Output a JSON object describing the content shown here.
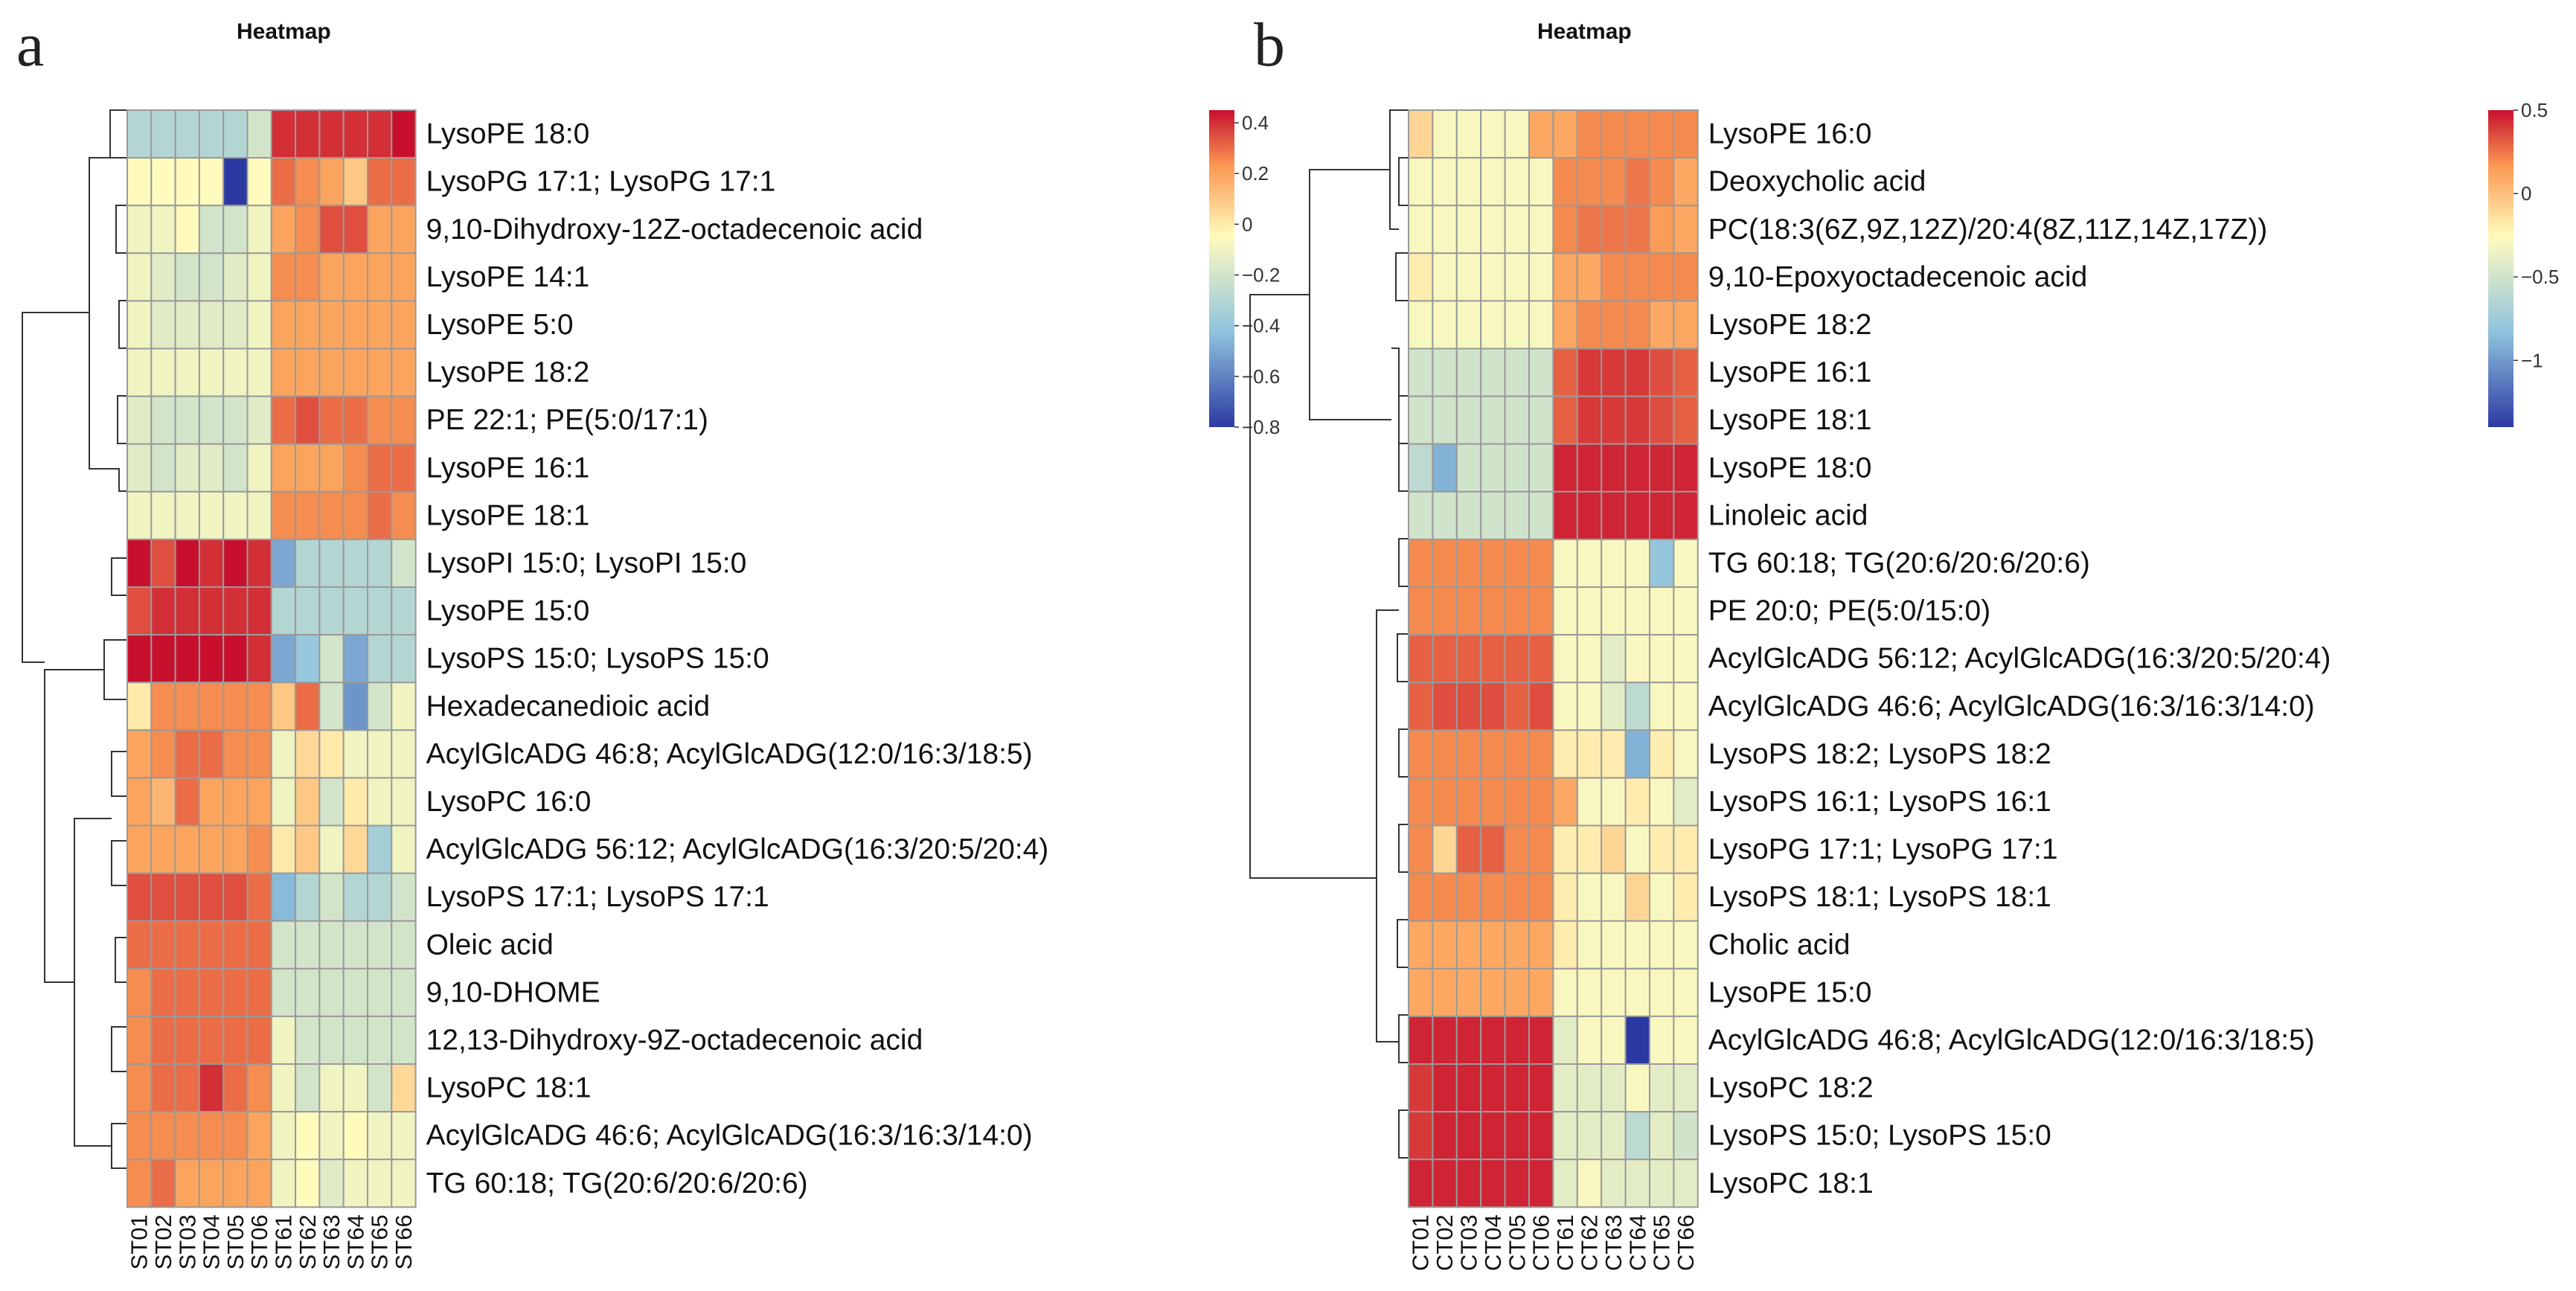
{
  "colors": {
    "low": "#2c39a3",
    "mid_low": "#8fc3de",
    "mid": "#fffbbd",
    "mid_high": "#fb9b54",
    "high": "#c8102e",
    "grid": "#9a9a9a"
  },
  "chart_data": [
    {
      "type": "heatmap",
      "panel": "a",
      "title": "Heatmap",
      "columns": [
        "ST01",
        "ST02",
        "ST03",
        "ST04",
        "ST05",
        "ST06",
        "ST61",
        "ST62",
        "ST63",
        "ST64",
        "ST65",
        "ST66"
      ],
      "rows": [
        "LysoPE 18:0",
        "LysoPG 17:1; LysoPG 17:1",
        "9,10-Dihydroxy-12Z-octadecenoic acid",
        "LysoPE 14:1",
        "LysoPE 5:0",
        "LysoPE 18:2",
        "PE 22:1; PE(5:0/17:1)",
        "LysoPE 16:1",
        "LysoPE 18:1",
        "LysoPI 15:0; LysoPI 15:0",
        "LysoPE 15:0",
        "LysoPS 15:0; LysoPS 15:0",
        "Hexadecanedioic acid",
        "AcylGlcADG 46:8; AcylGlcADG(12:0/16:3/18:5)",
        "LysoPC 16:0",
        "AcylGlcADG 56:12; AcylGlcADG(16:3/20:5/20:4)",
        "LysoPS 17:1; LysoPS 17:1",
        "Oleic acid",
        "9,10-DHOME",
        "12,13-Dihydroxy-9Z-octadecenoic acid",
        "LysoPC 18:1",
        "AcylGlcADG 46:6; AcylGlcADG(16:3/16:3/14:0)",
        "TG 60:18; TG(20:6/20:6/20:6)"
      ],
      "values": [
        [
          -0.3,
          -0.3,
          -0.3,
          -0.3,
          -0.3,
          -0.2,
          0.4,
          0.4,
          0.4,
          0.4,
          0.4,
          0.45
        ],
        [
          -0.05,
          -0.05,
          -0.05,
          -0.05,
          -0.8,
          -0.05,
          0.3,
          0.25,
          0.2,
          0.1,
          0.3,
          0.3
        ],
        [
          -0.1,
          -0.1,
          -0.05,
          -0.2,
          -0.2,
          -0.1,
          0.2,
          0.25,
          0.35,
          0.35,
          0.2,
          0.2
        ],
        [
          -0.1,
          -0.15,
          -0.2,
          -0.2,
          -0.15,
          -0.1,
          0.25,
          0.25,
          0.2,
          0.2,
          0.2,
          0.2
        ],
        [
          -0.1,
          -0.15,
          -0.15,
          -0.15,
          -0.15,
          -0.1,
          0.2,
          0.2,
          0.2,
          0.2,
          0.2,
          0.2
        ],
        [
          -0.1,
          -0.1,
          -0.1,
          -0.1,
          -0.1,
          -0.1,
          0.2,
          0.2,
          0.2,
          0.2,
          0.2,
          0.2
        ],
        [
          -0.15,
          -0.2,
          -0.2,
          -0.2,
          -0.2,
          -0.15,
          0.3,
          0.35,
          0.3,
          0.3,
          0.25,
          0.25
        ],
        [
          -0.15,
          -0.2,
          -0.15,
          -0.15,
          -0.2,
          -0.1,
          0.2,
          0.2,
          0.2,
          0.25,
          0.3,
          0.3
        ],
        [
          -0.1,
          -0.1,
          -0.1,
          -0.1,
          -0.1,
          -0.1,
          0.25,
          0.25,
          0.25,
          0.25,
          0.3,
          0.25
        ],
        [
          0.45,
          0.35,
          0.45,
          0.4,
          0.45,
          0.4,
          -0.5,
          -0.3,
          -0.3,
          -0.3,
          -0.3,
          -0.2
        ],
        [
          0.35,
          0.4,
          0.4,
          0.4,
          0.4,
          0.4,
          -0.3,
          -0.3,
          -0.3,
          -0.3,
          -0.3,
          -0.3
        ],
        [
          0.45,
          0.45,
          0.45,
          0.45,
          0.45,
          0.4,
          -0.5,
          -0.4,
          -0.2,
          -0.5,
          -0.3,
          -0.3
        ],
        [
          0.0,
          0.25,
          0.25,
          0.25,
          0.25,
          0.25,
          0.1,
          0.3,
          -0.2,
          -0.55,
          -0.2,
          -0.1
        ],
        [
          0.2,
          0.25,
          0.3,
          0.3,
          0.25,
          0.25,
          -0.1,
          0.05,
          0.0,
          -0.1,
          -0.1,
          -0.1
        ],
        [
          0.2,
          0.15,
          0.3,
          0.2,
          0.2,
          0.2,
          -0.1,
          0.1,
          -0.2,
          0.0,
          -0.1,
          -0.1
        ],
        [
          0.2,
          0.2,
          0.2,
          0.2,
          0.2,
          0.25,
          0.0,
          0.1,
          -0.1,
          0.05,
          -0.35,
          -0.1
        ],
        [
          0.35,
          0.35,
          0.35,
          0.35,
          0.35,
          0.3,
          -0.45,
          -0.3,
          -0.2,
          -0.3,
          -0.3,
          -0.2
        ],
        [
          0.3,
          0.3,
          0.3,
          0.3,
          0.3,
          0.3,
          -0.2,
          -0.2,
          -0.2,
          -0.2,
          -0.2,
          -0.2
        ],
        [
          0.25,
          0.3,
          0.3,
          0.3,
          0.3,
          0.3,
          -0.2,
          -0.2,
          -0.2,
          -0.2,
          -0.2,
          -0.2
        ],
        [
          0.25,
          0.3,
          0.3,
          0.3,
          0.3,
          0.3,
          -0.1,
          -0.2,
          -0.2,
          -0.2,
          -0.2,
          -0.2
        ],
        [
          0.25,
          0.3,
          0.3,
          0.4,
          0.3,
          0.25,
          -0.1,
          -0.2,
          -0.1,
          -0.1,
          -0.2,
          0.05
        ],
        [
          0.25,
          0.25,
          0.25,
          0.25,
          0.25,
          0.2,
          -0.1,
          -0.05,
          -0.1,
          -0.05,
          -0.1,
          -0.1
        ],
        [
          0.25,
          0.3,
          0.2,
          0.2,
          0.2,
          0.2,
          -0.1,
          -0.05,
          -0.15,
          -0.1,
          -0.1,
          -0.1
        ]
      ],
      "color_scale": {
        "min": -0.8,
        "max": 0.45,
        "ticks": [
          0.4,
          0.2,
          0,
          -0.2,
          -0.4,
          -0.6,
          -0.8
        ]
      }
    },
    {
      "type": "heatmap",
      "panel": "b",
      "title": "Heatmap",
      "columns": [
        "CT01",
        "CT02",
        "CT03",
        "CT04",
        "CT05",
        "CT06",
        "CT61",
        "CT62",
        "CT63",
        "CT64",
        "CT65",
        "CT66"
      ],
      "rows": [
        "LysoPE 16:0",
        "Deoxycholic acid",
        "PC(18:3(6Z,9Z,12Z)/20:4(8Z,11Z,14Z,17Z))",
        "9,10-Epoxyoctadecenoic acid",
        "LysoPE 18:2",
        "LysoPE 16:1",
        "LysoPE 18:1",
        "LysoPE 18:0",
        "Linoleic acid",
        "TG 60:18; TG(20:6/20:6/20:6)",
        "PE 20:0; PE(5:0/15:0)",
        "AcylGlcADG 56:12; AcylGlcADG(16:3/20:5/20:4)",
        "AcylGlcADG 46:6; AcylGlcADG(16:3/16:3/14:0)",
        "LysoPS 18:2; LysoPS 18:2",
        "LysoPS 16:1; LysoPS 16:1",
        "LysoPG 17:1; LysoPG 17:1",
        "LysoPS 18:1; LysoPS 18:1",
        "Cholic acid",
        "LysoPE 15:0",
        "AcylGlcADG 46:8; AcylGlcADG(12:0/16:3/18:5)",
        "LysoPC 18:2",
        "LysoPS 15:0; LysoPS 15:0",
        "LysoPC 18:1"
      ],
      "values": [
        [
          -0.1,
          -0.3,
          -0.3,
          -0.3,
          -0.3,
          0.1,
          0.1,
          0.2,
          0.2,
          0.2,
          0.2,
          0.2
        ],
        [
          -0.3,
          -0.3,
          -0.3,
          -0.3,
          -0.3,
          -0.3,
          0.2,
          0.2,
          0.2,
          0.25,
          0.2,
          0.1
        ],
        [
          -0.3,
          -0.3,
          -0.3,
          -0.3,
          -0.3,
          -0.3,
          0.2,
          0.25,
          0.25,
          0.25,
          0.15,
          0.1
        ],
        [
          -0.2,
          -0.3,
          -0.3,
          -0.3,
          -0.3,
          -0.3,
          0.1,
          0.1,
          0.2,
          0.2,
          0.2,
          0.2
        ],
        [
          -0.3,
          -0.3,
          -0.3,
          -0.3,
          -0.3,
          -0.3,
          0.1,
          0.2,
          0.2,
          0.2,
          0.1,
          0.1
        ],
        [
          -0.5,
          -0.5,
          -0.5,
          -0.5,
          -0.5,
          -0.5,
          0.3,
          0.4,
          0.4,
          0.4,
          0.35,
          0.3
        ],
        [
          -0.5,
          -0.5,
          -0.5,
          -0.5,
          -0.5,
          -0.5,
          0.3,
          0.4,
          0.4,
          0.4,
          0.35,
          0.3
        ],
        [
          -0.6,
          -0.9,
          -0.5,
          -0.5,
          -0.5,
          -0.5,
          0.45,
          0.45,
          0.45,
          0.45,
          0.45,
          0.45
        ],
        [
          -0.5,
          -0.5,
          -0.5,
          -0.5,
          -0.5,
          -0.5,
          0.45,
          0.45,
          0.45,
          0.45,
          0.45,
          0.45
        ],
        [
          0.2,
          0.2,
          0.2,
          0.2,
          0.2,
          0.2,
          -0.3,
          -0.3,
          -0.3,
          -0.3,
          -0.8,
          -0.3
        ],
        [
          0.2,
          0.2,
          0.2,
          0.2,
          0.2,
          0.2,
          -0.3,
          -0.3,
          -0.3,
          -0.3,
          -0.3,
          -0.3
        ],
        [
          0.3,
          0.3,
          0.3,
          0.3,
          0.3,
          0.3,
          -0.3,
          -0.3,
          -0.4,
          -0.3,
          -0.3,
          -0.3
        ],
        [
          0.3,
          0.35,
          0.35,
          0.35,
          0.3,
          0.35,
          -0.3,
          -0.3,
          -0.4,
          -0.6,
          -0.3,
          -0.3
        ],
        [
          0.2,
          0.2,
          0.2,
          0.2,
          0.2,
          0.2,
          -0.2,
          -0.2,
          -0.2,
          -0.9,
          -0.2,
          -0.3
        ],
        [
          0.2,
          0.2,
          0.2,
          0.2,
          0.2,
          0.2,
          0.1,
          -0.3,
          -0.3,
          -0.2,
          -0.3,
          -0.4
        ],
        [
          0.2,
          -0.1,
          0.3,
          0.3,
          0.2,
          0.2,
          -0.2,
          -0.2,
          -0.1,
          -0.3,
          -0.2,
          -0.2
        ],
        [
          0.2,
          0.2,
          0.2,
          0.2,
          0.2,
          0.2,
          -0.2,
          -0.3,
          -0.3,
          -0.1,
          -0.3,
          -0.2
        ],
        [
          0.1,
          0.1,
          0.1,
          0.1,
          0.1,
          0.1,
          -0.2,
          -0.3,
          -0.3,
          -0.3,
          -0.3,
          -0.3
        ],
        [
          0.1,
          0.1,
          0.1,
          0.1,
          0.1,
          0.1,
          -0.3,
          -0.3,
          -0.3,
          -0.3,
          -0.3,
          -0.3
        ],
        [
          0.45,
          0.45,
          0.45,
          0.45,
          0.45,
          0.45,
          -0.4,
          -0.3,
          -0.3,
          -1.4,
          -0.3,
          -0.3
        ],
        [
          0.4,
          0.45,
          0.45,
          0.45,
          0.45,
          0.45,
          -0.4,
          -0.4,
          -0.4,
          -0.3,
          -0.4,
          -0.4
        ],
        [
          0.4,
          0.45,
          0.45,
          0.45,
          0.45,
          0.45,
          -0.4,
          -0.4,
          -0.4,
          -0.6,
          -0.4,
          -0.5
        ],
        [
          0.45,
          0.45,
          0.45,
          0.45,
          0.45,
          0.45,
          -0.4,
          -0.3,
          -0.4,
          -0.4,
          -0.4,
          -0.4
        ]
      ],
      "color_scale": {
        "min": -1.4,
        "max": 0.5,
        "ticks": [
          0.5,
          0,
          -0.5,
          -1
        ]
      }
    }
  ]
}
